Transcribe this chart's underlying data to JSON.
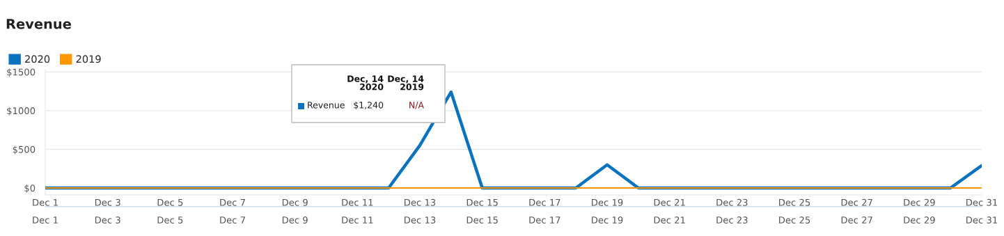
{
  "chart_data": {
    "type": "line",
    "title": "Revenue",
    "categories": [
      "Dec 1",
      null,
      "Dec 3",
      null,
      "Dec 5",
      null,
      "Dec 7",
      null,
      "Dec 9",
      null,
      "Dec 11",
      null,
      "Dec 13",
      null,
      "Dec 15",
      null,
      "Dec 17",
      null,
      "Dec 19",
      null,
      "Dec 21",
      null,
      "Dec 23",
      null,
      "Dec 25",
      null,
      "Dec 27",
      null,
      "Dec 29",
      null,
      "Dec 31"
    ],
    "series": [
      {
        "name": "2020",
        "color": "#0a73be",
        "values": [
          0,
          0,
          0,
          0,
          0,
          0,
          0,
          0,
          0,
          0,
          0,
          0,
          550,
          1240,
          0,
          0,
          0,
          0,
          300,
          0,
          0,
          0,
          0,
          0,
          0,
          0,
          0,
          0,
          0,
          0,
          290
        ]
      },
      {
        "name": "2019",
        "color": "#ff9800",
        "values": [
          0,
          0,
          0,
          0,
          0,
          0,
          0,
          0,
          0,
          0,
          0,
          0,
          0,
          0,
          0,
          0,
          0,
          0,
          0,
          0,
          0,
          0,
          0,
          0,
          0,
          0,
          0,
          0,
          0,
          0,
          0
        ]
      }
    ],
    "ylim": [
      -90,
      1530
    ],
    "yticks": [
      {
        "value": 0,
        "label": "$0"
      },
      {
        "value": 500,
        "label": "$500"
      },
      {
        "value": 1000,
        "label": "$1000"
      },
      {
        "value": 1500,
        "label": "$1500"
      }
    ],
    "annotations": [
      "Dec, 14\n2020",
      "Dec, 14\n2019",
      "Revenue",
      "$1,240",
      "N/A"
    ],
    "grid": "y",
    "legend": "top left",
    "marker": "none",
    "line_style": "solid"
  }
}
